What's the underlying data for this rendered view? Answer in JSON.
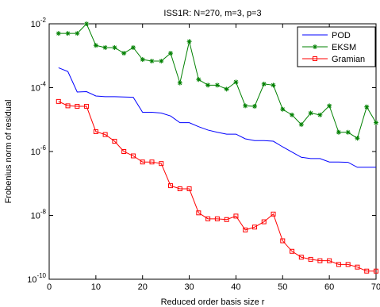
{
  "chart_data": {
    "type": "line",
    "title": "ISS1R: N=270, m=3, p=3",
    "x_label": "Reduced order basis size r",
    "y_label": "Frobenius norm of residual",
    "log_y": true,
    "legend": "upper right",
    "x": [
      2,
      4,
      6,
      8,
      10,
      12,
      14,
      16,
      18,
      20,
      22,
      24,
      26,
      28,
      30,
      32,
      34,
      36,
      38,
      40,
      42,
      44,
      46,
      48,
      50,
      52,
      54,
      56,
      58,
      60,
      62,
      64,
      66,
      68,
      70
    ],
    "series": [
      {
        "name": "POD",
        "color": "#0000ff",
        "marker": "none",
        "values": [
          0.00042,
          0.00032,
          7.3e-05,
          7.5e-05,
          5.5e-05,
          5.2e-05,
          5.2e-05,
          5.1e-05,
          5e-05,
          1.7e-05,
          1.7e-05,
          1.6e-05,
          1.3e-05,
          8e-06,
          8e-06,
          6e-06,
          4.7e-06,
          4e-06,
          3.5e-06,
          3.5e-06,
          2.5e-06,
          2.2e-06,
          2.2e-06,
          2.1e-06,
          1.4e-06,
          9.6e-07,
          6.6e-07,
          6e-07,
          6e-07,
          4.7e-07,
          4.7e-07,
          4.6e-07,
          3.2e-07,
          3.2e-07,
          3.2e-07
        ]
      },
      {
        "name": "EKSM",
        "color": "#008000",
        "marker": "star",
        "values": [
          0.005,
          0.005,
          0.005,
          0.01,
          0.0021,
          0.0018,
          0.0018,
          0.0012,
          0.0018,
          0.00076,
          0.00068,
          0.00068,
          0.0012,
          0.00014,
          0.0028,
          0.00018,
          0.00012,
          0.00012,
          9e-05,
          0.00015,
          2.7e-05,
          2.6e-05,
          0.00013,
          0.00012,
          2.1e-05,
          1.4e-05,
          7e-06,
          1.6e-05,
          1.4e-05,
          2.7e-05,
          4e-06,
          4e-06,
          2.6e-06,
          2.5e-05,
          8e-06
        ]
      },
      {
        "name": "Gramian",
        "color": "#ff0000",
        "marker": "square",
        "values": [
          3.7e-05,
          2.7e-05,
          2.6e-05,
          2.6e-05,
          4.2e-06,
          3.4e-06,
          2.1e-06,
          1e-06,
          7.3e-07,
          4.7e-07,
          4.7e-07,
          4.2e-07,
          8.5e-08,
          6.8e-08,
          6.8e-08,
          1.2e-08,
          7.8e-09,
          7.8e-09,
          7.4e-09,
          9.5e-09,
          3.5e-09,
          4.3e-09,
          6.3e-09,
          1.1e-08,
          1.6e-09,
          7.5e-10,
          4.9e-10,
          4.2e-10,
          3.8e-10,
          3.8e-10,
          2.9e-10,
          2.9e-10,
          2.4e-10,
          1.8e-10,
          1.8e-10
        ]
      }
    ],
    "xlim": [
      0,
      70
    ],
    "xticks": [
      0,
      10,
      20,
      30,
      40,
      50,
      60,
      70
    ],
    "ylim": [
      1e-10,
      0.01
    ],
    "yticks": [
      {
        "value": 1e-10,
        "label": "10^-10"
      },
      {
        "value": 1e-08,
        "label": "10^-8"
      },
      {
        "value": 1e-06,
        "label": "10^-6"
      },
      {
        "value": 0.0001,
        "label": "10^-4"
      },
      {
        "value": 0.01,
        "label": "10^-2"
      }
    ]
  }
}
